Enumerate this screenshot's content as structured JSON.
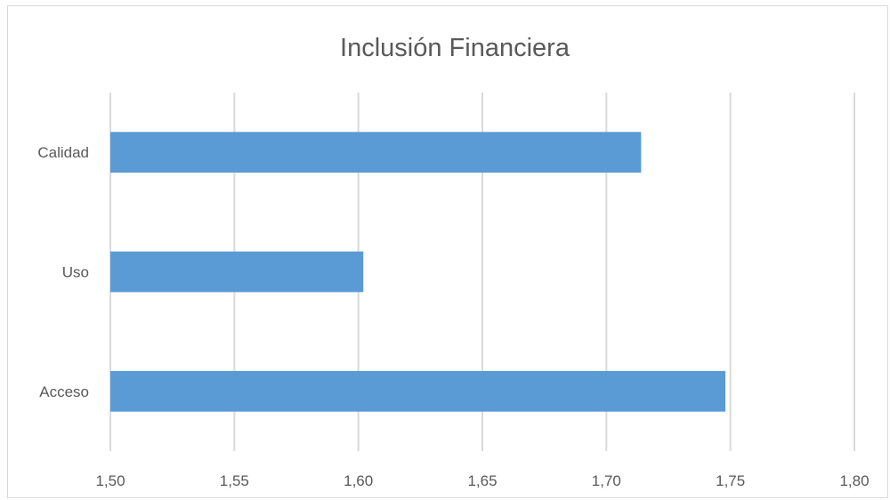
{
  "chart_data": {
    "type": "bar",
    "orientation": "horizontal",
    "title": "Inclusión Financiera",
    "xlabel": "",
    "ylabel": "",
    "categories": [
      "Acceso",
      "Uso",
      "Calidad"
    ],
    "values": [
      1.748,
      1.602,
      1.714
    ],
    "xlim": [
      1.5,
      1.8
    ],
    "x_ticks": [
      "1,50",
      "1,55",
      "1,60",
      "1,65",
      "1,70",
      "1,75",
      "1,80"
    ],
    "grid": true,
    "legend": "none",
    "bar_color": "#5B9BD5",
    "grid_color": "#d9d9d9"
  }
}
